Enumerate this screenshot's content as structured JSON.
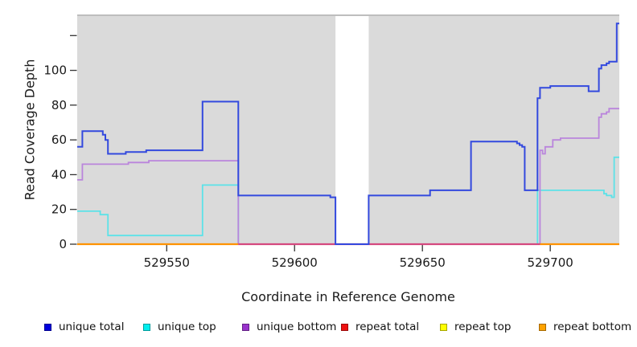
{
  "chart_data": {
    "type": "line",
    "title": "",
    "xlabel": "Coordinate in Reference Genome",
    "ylabel": "Read Coverage Depth",
    "xlim": [
      529515,
      529727
    ],
    "ylim": [
      0,
      131
    ],
    "x_ticks": [
      529550,
      529600,
      529650,
      529700
    ],
    "y_ticks": [
      0,
      20,
      40,
      60,
      80,
      100
    ],
    "y_ticks_unlabeled": [
      120
    ],
    "grid": false,
    "panel_bg": "#DADADA",
    "panel_top_rule_color": "#A9A9A9",
    "no_data_gap": [
      529616,
      529629
    ],
    "legend_position": "bottom",
    "series": [
      {
        "name": "unique total",
        "color": "#3349DE",
        "legend_color": "#0000DD",
        "points": [
          [
            529515,
            56
          ],
          [
            529517,
            65
          ],
          [
            529525,
            63
          ],
          [
            529526,
            60
          ],
          [
            529527,
            52
          ],
          [
            529534,
            53
          ],
          [
            529542,
            54
          ],
          [
            529564,
            82
          ],
          [
            529578,
            28
          ],
          [
            529614,
            27
          ],
          [
            529616,
            0
          ],
          [
            529629,
            28
          ],
          [
            529653,
            31
          ],
          [
            529669,
            59
          ],
          [
            529687,
            58
          ],
          [
            529688,
            57
          ],
          [
            529689,
            56
          ],
          [
            529690,
            31
          ],
          [
            529695,
            84
          ],
          [
            529696,
            90
          ],
          [
            529700,
            91
          ],
          [
            529715,
            88
          ],
          [
            529719,
            101
          ],
          [
            529720,
            103
          ],
          [
            529722,
            104
          ],
          [
            529723,
            105
          ],
          [
            529726,
            127
          ],
          [
            529727,
            127
          ]
        ]
      },
      {
        "name": "unique top",
        "color": "#5CE2E8",
        "legend_color": "#00EEEE",
        "points": [
          [
            529515,
            19
          ],
          [
            529524,
            17
          ],
          [
            529527,
            5
          ],
          [
            529564,
            34
          ],
          [
            529578,
            0
          ],
          [
            529695,
            31
          ],
          [
            529721,
            29
          ],
          [
            529722,
            28
          ],
          [
            529724,
            27
          ],
          [
            529725,
            50
          ],
          [
            529727,
            50
          ]
        ]
      },
      {
        "name": "unique bottom",
        "color": "#BA85DC",
        "legend_color": "#9933CC",
        "points": [
          [
            529515,
            37
          ],
          [
            529517,
            46
          ],
          [
            529535,
            47
          ],
          [
            529543,
            48
          ],
          [
            529578,
            0
          ],
          [
            529696,
            54
          ],
          [
            529697,
            52
          ],
          [
            529698,
            56
          ],
          [
            529701,
            60
          ],
          [
            529704,
            61
          ],
          [
            529719,
            73
          ],
          [
            529720,
            75
          ],
          [
            529722,
            76
          ],
          [
            529723,
            78
          ],
          [
            529727,
            78
          ]
        ]
      },
      {
        "name": "repeat total",
        "color": "#D4487E",
        "legend_color": "#EE1111",
        "points": [
          [
            529515,
            0
          ],
          [
            529727,
            0
          ]
        ]
      },
      {
        "name": "repeat top",
        "color": "#FFFF00",
        "legend_color": "#FFFF00",
        "points": [
          [
            529515,
            0
          ],
          [
            529727,
            0
          ]
        ]
      },
      {
        "name": "repeat bottom",
        "color": "#FF9200",
        "legend_color": "#FFA200",
        "points": [
          [
            529515,
            0
          ],
          [
            529727,
            0
          ]
        ]
      }
    ],
    "zero_line_segments": [
      {
        "from": 529515,
        "to": 529578,
        "color": "#FF9200"
      },
      {
        "from": 529578,
        "to": 529696,
        "color": "#D4487E"
      },
      {
        "from": 529696,
        "to": 529727,
        "color": "#FF9200"
      }
    ]
  }
}
